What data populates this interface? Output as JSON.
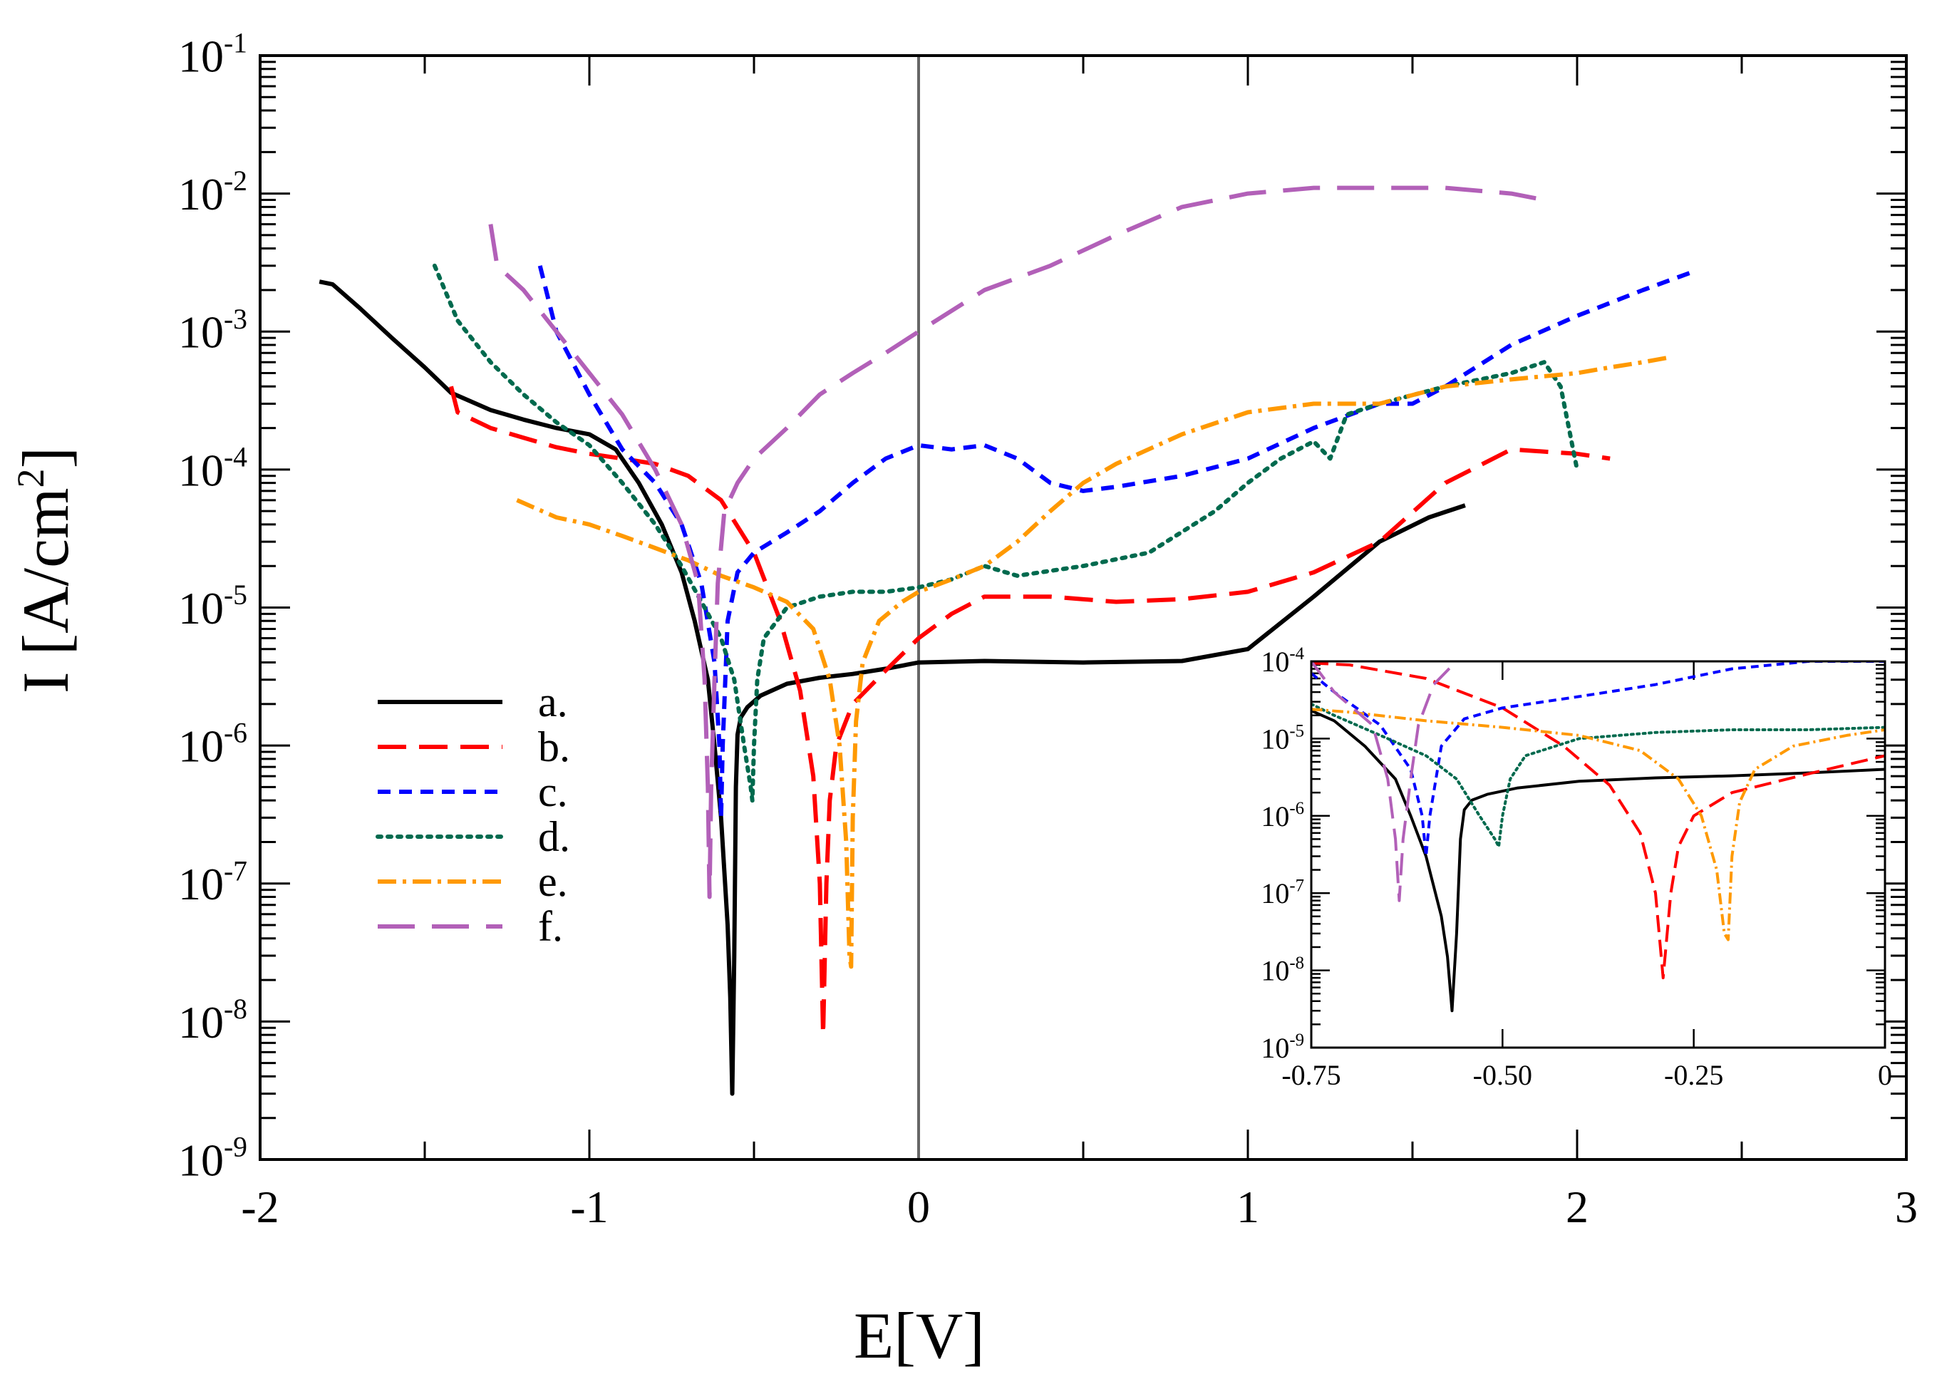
{
  "chart_data": [
    {
      "type": "line",
      "panel": "main",
      "yscale": "log",
      "xlabel": "E[V]",
      "ylabel_prefix": "I [A/cm",
      "ylabel_sup": "2",
      "ylabel_suffix": "]",
      "xlim": [
        -2,
        3
      ],
      "ylim_exp": [
        -9,
        -1
      ],
      "xticks": [
        {
          "value": -2,
          "label": "-2"
        },
        {
          "value": -1,
          "label": "-1"
        },
        {
          "value": 0,
          "label": "0"
        },
        {
          "value": 1,
          "label": "1"
        },
        {
          "value": 2,
          "label": "2"
        },
        {
          "value": 3,
          "label": "3"
        }
      ],
      "yticks": [
        {
          "exp": -9,
          "base": "10",
          "sup": "-9"
        },
        {
          "exp": -8,
          "base": "10",
          "sup": "-8"
        },
        {
          "exp": -7,
          "base": "10",
          "sup": "-7"
        },
        {
          "exp": -6,
          "base": "10",
          "sup": "-6"
        },
        {
          "exp": -5,
          "base": "10",
          "sup": "-5"
        },
        {
          "exp": -4,
          "base": "10",
          "sup": "-4"
        },
        {
          "exp": -3,
          "base": "10",
          "sup": "-3"
        },
        {
          "exp": -2,
          "base": "10",
          "sup": "-2"
        },
        {
          "exp": -1,
          "base": "10",
          "sup": "-1"
        }
      ],
      "vline_x": 0,
      "legend_position": "lower-left",
      "series": [
        {
          "name": "a.",
          "color": "#000000",
          "dash": "solid",
          "x": [
            -1.82,
            -1.78,
            -1.7,
            -1.6,
            -1.5,
            -1.42,
            -1.3,
            -1.2,
            -1.1,
            -1.0,
            -0.92,
            -0.85,
            -0.78,
            -0.72,
            -0.68,
            -0.64,
            -0.62,
            -0.6,
            -0.58,
            -0.572,
            -0.566,
            -0.56,
            -0.555,
            -0.55,
            -0.54,
            -0.52,
            -0.48,
            -0.4,
            -0.3,
            -0.2,
            -0.1,
            0.0,
            0.2,
            0.5,
            0.8,
            1.0,
            1.2,
            1.4,
            1.55,
            1.66
          ],
          "y": [
            0.0023,
            0.0022,
            0.0015,
            0.0009,
            0.00055,
            0.00036,
            0.00027,
            0.00023,
            0.0002,
            0.00018,
            0.00014,
            8e-05,
            4e-05,
            1.8e-05,
            8e-06,
            3e-06,
            1e-06,
            3e-07,
            5e-08,
            1.5e-08,
            3e-09,
            3e-08,
            5e-07,
            1.2e-06,
            1.6e-06,
            1.9e-06,
            2.3e-06,
            2.8e-06,
            3.1e-06,
            3.3e-06,
            3.6e-06,
            4e-06,
            4.1e-06,
            4e-06,
            4.1e-06,
            5e-06,
            1.2e-05,
            3e-05,
            4.5e-05,
            5.5e-05
          ]
        },
        {
          "name": "b.",
          "color": "#ff0000",
          "dash": "long-dash",
          "x": [
            -1.42,
            -1.4,
            -1.3,
            -1.2,
            -1.1,
            -1.0,
            -0.9,
            -0.8,
            -0.7,
            -0.6,
            -0.5,
            -0.42,
            -0.36,
            -0.32,
            -0.3,
            -0.29,
            -0.28,
            -0.27,
            -0.25,
            -0.2,
            -0.1,
            0.0,
            0.1,
            0.2,
            0.4,
            0.6,
            0.8,
            1.0,
            1.2,
            1.4,
            1.6,
            1.8,
            2.0,
            2.1
          ],
          "y": [
            0.0004,
            0.00026,
            0.0002,
            0.00017,
            0.000145,
            0.00013,
            0.00012,
            0.00011,
            9e-05,
            6e-05,
            2.5e-05,
            8e-06,
            2.5e-06,
            6e-07,
            1e-07,
            8e-09,
            1e-07,
            4e-07,
            1e-06,
            2e-06,
            3.5e-06,
            6e-06,
            9e-06,
            1.2e-05,
            1.2e-05,
            1.1e-05,
            1.15e-05,
            1.3e-05,
            1.8e-05,
            3e-05,
            8e-05,
            0.00014,
            0.00013,
            0.00012
          ]
        },
        {
          "name": "c.",
          "color": "#0000ff",
          "dash": "short-dash",
          "x": [
            -1.15,
            -1.1,
            -1.0,
            -0.9,
            -0.8,
            -0.72,
            -0.66,
            -0.62,
            -0.605,
            -0.6,
            -0.595,
            -0.58,
            -0.55,
            -0.5,
            -0.4,
            -0.3,
            -0.2,
            -0.1,
            0.0,
            0.1,
            0.2,
            0.3,
            0.4,
            0.5,
            0.6,
            0.8,
            1.0,
            1.2,
            1.4,
            1.5,
            1.6,
            1.8,
            2.0,
            2.2,
            2.35
          ],
          "y": [
            0.003,
            0.001,
            0.00035,
            0.00014,
            8e-05,
            4e-05,
            1.5e-05,
            4e-06,
            1e-06,
            3e-07,
            1e-06,
            8e-06,
            1.8e-05,
            2.5e-05,
            3.5e-05,
            5e-05,
            8e-05,
            0.00012,
            0.00015,
            0.00014,
            0.00015,
            0.00012,
            8e-05,
            7e-05,
            7.5e-05,
            9e-05,
            0.00012,
            0.0002,
            0.0003,
            0.0003,
            0.0004,
            0.0008,
            0.0013,
            0.002,
            0.0027
          ]
        },
        {
          "name": "d.",
          "color": "#006a4e",
          "dash": "dotted",
          "x": [
            -1.47,
            -1.4,
            -1.3,
            -1.2,
            -1.1,
            -1.0,
            -0.9,
            -0.8,
            -0.72,
            -0.65,
            -0.6,
            -0.56,
            -0.53,
            -0.51,
            -0.505,
            -0.5,
            -0.49,
            -0.47,
            -0.4,
            -0.3,
            -0.2,
            -0.1,
            0.0,
            0.1,
            0.2,
            0.3,
            0.5,
            0.7,
            0.9,
            1.0,
            1.1,
            1.2,
            1.25,
            1.3,
            1.4,
            1.6,
            1.8,
            1.9,
            1.95,
            2.0
          ],
          "y": [
            0.003,
            0.0012,
            0.0006,
            0.00035,
            0.00022,
            0.00015,
            8e-05,
            4e-05,
            2e-05,
            1e-05,
            6e-06,
            3e-06,
            1e-06,
            5e-07,
            4e-07,
            1e-06,
            3e-06,
            6e-06,
            1e-05,
            1.2e-05,
            1.3e-05,
            1.3e-05,
            1.4e-05,
            1.6e-05,
            2e-05,
            1.7e-05,
            2e-05,
            2.5e-05,
            5e-05,
            8e-05,
            0.00012,
            0.00016,
            0.00012,
            0.00025,
            0.0003,
            0.0004,
            0.0005,
            0.0006,
            0.0004,
            0.0001
          ]
        },
        {
          "name": "e.",
          "color": "#ff9900",
          "dash": "dash-dot",
          "x": [
            -1.22,
            -1.1,
            -1.0,
            -0.9,
            -0.8,
            -0.7,
            -0.6,
            -0.5,
            -0.4,
            -0.32,
            -0.27,
            -0.24,
            -0.22,
            -0.21,
            -0.205,
            -0.2,
            -0.19,
            -0.17,
            -0.12,
            -0.05,
            0.0,
            0.1,
            0.2,
            0.3,
            0.4,
            0.5,
            0.6,
            0.8,
            1.0,
            1.2,
            1.4,
            1.6,
            1.8,
            2.0,
            2.1,
            2.2,
            2.28
          ],
          "y": [
            6e-05,
            4.5e-05,
            4e-05,
            3.3e-05,
            2.7e-05,
            2.2e-05,
            1.7e-05,
            1.4e-05,
            1.1e-05,
            7e-06,
            3e-06,
            1e-06,
            2e-07,
            3e-08,
            2.5e-08,
            3e-07,
            1.5e-06,
            4e-06,
            8e-06,
            1.1e-05,
            1.3e-05,
            1.6e-05,
            2e-05,
            3e-05,
            5e-05,
            8e-05,
            0.00011,
            0.00018,
            0.00026,
            0.0003,
            0.0003,
            0.0004,
            0.00045,
            0.0005,
            0.00055,
            0.0006,
            0.00065
          ]
        },
        {
          "name": "f.",
          "color": "#b260b8",
          "dash": "long-dash-wide",
          "x": [
            -1.3,
            -1.28,
            -1.2,
            -1.1,
            -1.0,
            -0.9,
            -0.8,
            -0.72,
            -0.67,
            -0.65,
            -0.64,
            -0.635,
            -0.63,
            -0.62,
            -0.61,
            -0.59,
            -0.55,
            -0.5,
            -0.4,
            -0.3,
            -0.2,
            -0.1,
            0.0,
            0.2,
            0.4,
            0.6,
            0.8,
            1.0,
            1.2,
            1.4,
            1.6,
            1.8,
            1.9
          ],
          "y": [
            0.006,
            0.003,
            0.002,
            0.001,
            0.0005,
            0.00025,
            0.0001,
            4e-05,
            1.5e-05,
            3e-06,
            5e-07,
            8e-08,
            5e-07,
            3e-06,
            1.5e-05,
            5e-05,
            8e-05,
            0.00012,
            0.0002,
            0.00035,
            0.0005,
            0.0007,
            0.001,
            0.002,
            0.003,
            0.005,
            0.008,
            0.01,
            0.011,
            0.011,
            0.011,
            0.01,
            0.009
          ]
        }
      ]
    },
    {
      "type": "line",
      "panel": "inset",
      "yscale": "log",
      "xlim": [
        -0.75,
        0
      ],
      "ylim_exp": [
        -9,
        -4
      ],
      "xticks": [
        {
          "value": -0.75,
          "label": "-0.75"
        },
        {
          "value": -0.5,
          "label": "-0.50"
        },
        {
          "value": -0.25,
          "label": "-0.25"
        },
        {
          "value": 0,
          "label": "0"
        }
      ],
      "yticks": [
        {
          "exp": -9,
          "base": "10",
          "sup": "-9"
        },
        {
          "exp": -8,
          "base": "10",
          "sup": "-8"
        },
        {
          "exp": -7,
          "base": "10",
          "sup": "-7"
        },
        {
          "exp": -6,
          "base": "10",
          "sup": "-6"
        },
        {
          "exp": -5,
          "base": "10",
          "sup": "-5"
        },
        {
          "exp": -4,
          "base": "10",
          "sup": "-4"
        }
      ],
      "series": [
        {
          "name": "a.",
          "color": "#000000",
          "dash": "solid",
          "x": [
            -0.75,
            -0.72,
            -0.68,
            -0.64,
            -0.62,
            -0.6,
            -0.58,
            -0.572,
            -0.566,
            -0.56,
            -0.555,
            -0.55,
            -0.54,
            -0.52,
            -0.48,
            -0.4,
            -0.3,
            -0.2,
            -0.1,
            0.0
          ],
          "y": [
            2.3e-05,
            1.7e-05,
            8e-06,
            3e-06,
            1e-06,
            3e-07,
            5e-08,
            1.5e-08,
            3e-09,
            3e-08,
            5e-07,
            1.2e-06,
            1.6e-06,
            1.9e-06,
            2.3e-06,
            2.8e-06,
            3.1e-06,
            3.3e-06,
            3.6e-06,
            4e-06
          ]
        },
        {
          "name": "b.",
          "color": "#ff0000",
          "dash": "long-dash",
          "x": [
            -0.75,
            -0.7,
            -0.6,
            -0.5,
            -0.42,
            -0.36,
            -0.32,
            -0.3,
            -0.29,
            -0.28,
            -0.27,
            -0.25,
            -0.2,
            -0.1,
            0.0
          ],
          "y": [
            9.5e-05,
            9e-05,
            6e-05,
            2.5e-05,
            8e-06,
            2.5e-06,
            6e-07,
            1e-07,
            8e-09,
            1e-07,
            4e-07,
            1e-06,
            2e-06,
            3.5e-06,
            6e-06
          ]
        },
        {
          "name": "c.",
          "color": "#0000ff",
          "dash": "short-dash",
          "x": [
            -0.75,
            -0.72,
            -0.66,
            -0.62,
            -0.605,
            -0.6,
            -0.595,
            -0.58,
            -0.55,
            -0.5,
            -0.4,
            -0.3,
            -0.2,
            -0.1,
            -0.05,
            0.0
          ],
          "y": [
            7e-05,
            4e-05,
            1.5e-05,
            4e-06,
            1e-06,
            3e-07,
            1e-06,
            8e-06,
            1.8e-05,
            2.5e-05,
            3.5e-05,
            5e-05,
            8e-05,
            0.0001,
            0.0001,
            0.0001
          ]
        },
        {
          "name": "d.",
          "color": "#006a4e",
          "dash": "dotted",
          "x": [
            -0.75,
            -0.72,
            -0.65,
            -0.6,
            -0.56,
            -0.53,
            -0.51,
            -0.505,
            -0.5,
            -0.49,
            -0.47,
            -0.4,
            -0.3,
            -0.2,
            -0.1,
            0.0
          ],
          "y": [
            2.8e-05,
            2e-05,
            1e-05,
            6e-06,
            3e-06,
            1e-06,
            5e-07,
            4e-07,
            1e-06,
            3e-06,
            6e-06,
            1e-05,
            1.2e-05,
            1.3e-05,
            1.3e-05,
            1.4e-05
          ]
        },
        {
          "name": "e.",
          "color": "#ff9900",
          "dash": "dash-dot",
          "x": [
            -0.75,
            -0.7,
            -0.6,
            -0.5,
            -0.4,
            -0.32,
            -0.27,
            -0.24,
            -0.22,
            -0.21,
            -0.205,
            -0.2,
            -0.19,
            -0.17,
            -0.12,
            -0.05,
            0.0
          ],
          "y": [
            2.4e-05,
            2.2e-05,
            1.7e-05,
            1.4e-05,
            1.1e-05,
            7e-06,
            3e-06,
            1e-06,
            2e-07,
            3e-08,
            2.5e-08,
            3e-07,
            1.5e-06,
            4e-06,
            8e-06,
            1.1e-05,
            1.3e-05
          ]
        },
        {
          "name": "f.",
          "color": "#b260b8",
          "dash": "long-dash-wide",
          "x": [
            -0.75,
            -0.72,
            -0.67,
            -0.65,
            -0.64,
            -0.635,
            -0.63,
            -0.62,
            -0.61,
            -0.59,
            -0.57,
            -0.56
          ],
          "y": [
            0.0001,
            4e-05,
            1.5e-05,
            3e-06,
            5e-07,
            8e-08,
            5e-07,
            3e-06,
            1.5e-05,
            5e-05,
            8e-05,
            0.0001
          ]
        }
      ]
    }
  ]
}
